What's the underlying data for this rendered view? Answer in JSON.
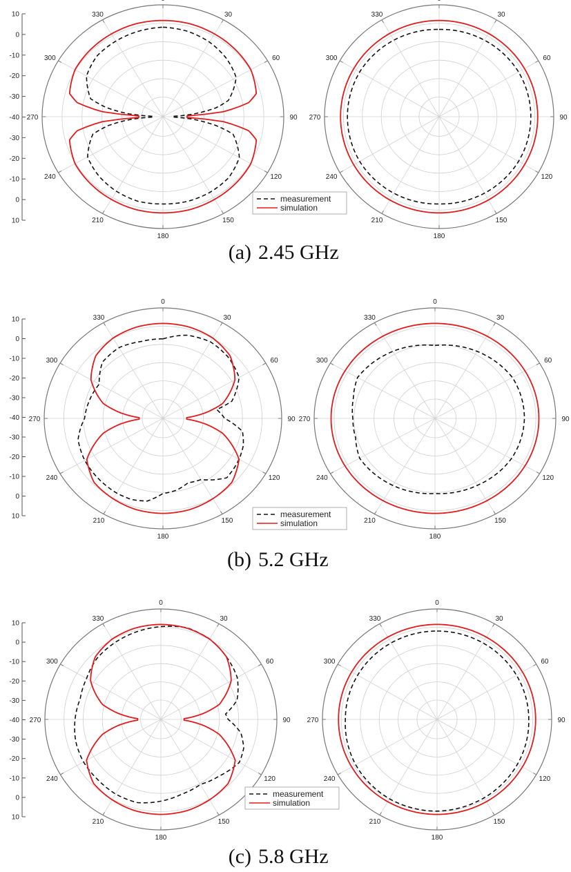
{
  "chart_data": [
    {
      "type": "polar",
      "caption": "(a) 2.45 GHz",
      "caption_label": "(a)",
      "caption_freq": "2.45 GHz",
      "legend": [
        "measurement",
        "simulation"
      ],
      "angle_ticks": [
        "0",
        "30",
        "60",
        "90",
        "120",
        "150",
        "180",
        "210",
        "240",
        "270",
        "300",
        "330"
      ],
      "radial_ticks": [
        "10",
        "0",
        "-10",
        "-20",
        "-30",
        "-40",
        "-30",
        "-20",
        "-10",
        "0",
        "10"
      ],
      "rlim": [
        -40,
        10
      ],
      "panels": [
        {
          "name": "left",
          "series": [
            {
              "name": "measurement",
              "style": "dashed",
              "color": "#111111",
              "angles": [
                0,
                15,
                30,
                45,
                60,
                75,
                80,
                85,
                88,
                92,
                95,
                100,
                105,
                120,
                135,
                150,
                165,
                180,
                195,
                210,
                225,
                240,
                255,
                260,
                265,
                268,
                272,
                275,
                280,
                285,
                300,
                315,
                330,
                345
              ],
              "values": [
                0,
                -0.5,
                -1.5,
                -3,
                -5,
                -12,
                -18,
                -28,
                -36,
                -36,
                -28,
                -18,
                -10,
                -3.5,
                -1.5,
                -1,
                -0.8,
                -1,
                -0.8,
                -1.5,
                -2.5,
                -4,
                -10,
                -17,
                -27,
                -36,
                -36,
                -26,
                -16,
                -9,
                -3.5,
                -1.5,
                -1,
                -0.5
              ]
            },
            {
              "name": "simulation",
              "style": "solid",
              "color": "#e31a1c",
              "angles": [
                0,
                15,
                30,
                45,
                60,
                75,
                80,
                85,
                88,
                92,
                95,
                100,
                105,
                120,
                135,
                150,
                165,
                180,
                195,
                210,
                225,
                240,
                255,
                260,
                265,
                268,
                272,
                275,
                280,
                285,
                300,
                315,
                330,
                345
              ],
              "values": [
                3,
                3,
                2.7,
                2.4,
                2,
                0,
                -4,
                -15,
                -30,
                -30,
                -15,
                -4,
                0,
                2,
                2.4,
                2.7,
                3,
                3,
                3,
                2.7,
                2.4,
                2,
                0,
                -4,
                -15,
                -30,
                -30,
                -15,
                -4,
                0,
                2,
                2.4,
                2.7,
                3
              ]
            }
          ]
        },
        {
          "name": "right",
          "series": [
            {
              "name": "measurement",
              "style": "dashed",
              "color": "#111111",
              "angles": [
                0,
                30,
                60,
                90,
                120,
                150,
                180,
                210,
                240,
                270,
                300,
                330
              ],
              "values": [
                -1,
                -0.5,
                0,
                0,
                0,
                -0.5,
                -1,
                -0.5,
                0,
                0,
                0,
                -0.5
              ]
            },
            {
              "name": "simulation",
              "style": "solid",
              "color": "#e31a1c",
              "angles": [
                0,
                30,
                60,
                90,
                120,
                150,
                180,
                210,
                240,
                270,
                300,
                330
              ],
              "values": [
                3,
                3,
                3,
                3,
                3,
                3,
                3,
                3,
                3,
                3,
                3,
                3
              ]
            }
          ]
        }
      ]
    },
    {
      "type": "polar",
      "caption": "(b) 5.2 GHz",
      "caption_label": "(b)",
      "caption_freq": "5.2 GHz",
      "legend": [
        "measurement",
        "simulation"
      ],
      "angle_ticks": [
        "0",
        "30",
        "60",
        "90",
        "120",
        "150",
        "180",
        "210",
        "240",
        "270",
        "300",
        "330"
      ],
      "radial_ticks": [
        "10",
        "0",
        "-10",
        "-20",
        "-30",
        "-40",
        "-30",
        "-20",
        "-10",
        "0",
        "10"
      ],
      "rlim": [
        -40,
        10
      ],
      "panels": [
        {
          "name": "left",
          "series": [
            {
              "name": "measurement",
              "style": "dashed",
              "color": "#111111",
              "angles": [
                0,
                15,
                30,
                45,
                60,
                75,
                80,
                90,
                100,
                110,
                120,
                135,
                150,
                160,
                170,
                180,
                190,
                200,
                210,
                225,
                240,
                255,
                270,
                285,
                300,
                315,
                330,
                345
              ],
              "values": [
                -4,
                -1,
                0,
                -1,
                -3,
                -10,
                -17,
                -14,
                -6,
                -4,
                -3,
                -2,
                -8,
                -9,
                -7,
                -6,
                -2,
                -1,
                -1,
                -1.5,
                -2,
                -3,
                -7,
                -8,
                -9,
                -4,
                -3,
                -4
              ]
            },
            {
              "name": "simulation",
              "style": "solid",
              "color": "#e31a1c",
              "angles": [
                0,
                15,
                30,
                45,
                60,
                75,
                82,
                88,
                92,
                98,
                105,
                120,
                135,
                150,
                165,
                180,
                195,
                210,
                225,
                240,
                255,
                262,
                268,
                272,
                278,
                285,
                300,
                315,
                330,
                345
              ],
              "values": [
                3,
                2.8,
                2,
                0,
                -5,
                -14,
                -22,
                -30,
                -30,
                -22,
                -14,
                -3,
                1,
                2,
                2.8,
                3,
                2.8,
                2,
                1,
                -3,
                -14,
                -22,
                -30,
                -30,
                -22,
                -14,
                -5,
                0,
                2,
                2.8
              ]
            }
          ]
        },
        {
          "name": "right",
          "series": [
            {
              "name": "measurement",
              "style": "dashed",
              "color": "#111111",
              "angles": [
                0,
                30,
                60,
                90,
                120,
                150,
                180,
                210,
                240,
                255,
                270,
                285,
                300,
                330
              ],
              "values": [
                -7,
                -5,
                -3,
                -3,
                -3.5,
                -5,
                -6,
                -5,
                -4,
                -6,
                -6,
                -5,
                -3,
                -5
              ]
            },
            {
              "name": "simulation",
              "style": "solid",
              "color": "#e31a1c",
              "angles": [
                0,
                30,
                60,
                90,
                120,
                150,
                180,
                210,
                240,
                270,
                300,
                330
              ],
              "values": [
                3,
                3,
                3,
                3,
                3,
                3,
                3,
                3,
                3,
                3,
                3,
                3
              ]
            }
          ]
        }
      ]
    },
    {
      "type": "polar",
      "caption": "(c) 5.8 GHz",
      "caption_label": "(c)",
      "caption_freq": "5.8 GHz",
      "legend": [
        "measurement",
        "simulation"
      ],
      "angle_ticks": [
        "0",
        "30",
        "60",
        "90",
        "120",
        "150",
        "180",
        "210",
        "240",
        "270",
        "300",
        "330"
      ],
      "radial_ticks": [
        "10",
        "0",
        "-10",
        "-20",
        "-30",
        "-40",
        "-30",
        "-20",
        "-10",
        "0",
        "10"
      ],
      "rlim": [
        -40,
        10
      ],
      "panels": [
        {
          "name": "left",
          "series": [
            {
              "name": "measurement",
              "style": "dashed",
              "color": "#111111",
              "angles": [
                0,
                15,
                30,
                45,
                60,
                75,
                85,
                90,
                100,
                110,
                120,
                135,
                150,
                165,
                180,
                195,
                210,
                225,
                240,
                255,
                270,
                285,
                300,
                315,
                330,
                345
              ],
              "values": [
                2,
                3,
                2,
                0,
                -2,
                -6,
                -12,
                -11,
                -5,
                -2,
                -1,
                -4,
                -6,
                -5,
                -3,
                -1,
                -1,
                -1.5,
                -1.5,
                -2,
                -3,
                -4,
                -3,
                -1,
                0,
                1
              ]
            },
            {
              "name": "simulation",
              "style": "solid",
              "color": "#e31a1c",
              "angles": [
                0,
                15,
                30,
                45,
                60,
                75,
                82,
                88,
                92,
                98,
                105,
                120,
                135,
                150,
                165,
                180,
                195,
                210,
                225,
                240,
                255,
                262,
                268,
                272,
                278,
                285,
                300,
                315,
                330,
                345
              ],
              "values": [
                3,
                2.8,
                2,
                0,
                -5,
                -14,
                -22,
                -30,
                -30,
                -22,
                -14,
                -3,
                1,
                2,
                2.8,
                3,
                2.8,
                2,
                1,
                -3,
                -14,
                -22,
                -30,
                -30,
                -22,
                -14,
                -5,
                0,
                2,
                2.8
              ]
            }
          ]
        },
        {
          "name": "right",
          "series": [
            {
              "name": "measurement",
              "style": "dashed",
              "color": "#111111",
              "angles": [
                0,
                30,
                60,
                90,
                120,
                150,
                180,
                210,
                240,
                270,
                300,
                330
              ],
              "values": [
                0,
                0,
                0,
                0,
                0.5,
                1,
                1.5,
                1.5,
                1,
                0,
                0,
                0
              ]
            },
            {
              "name": "simulation",
              "style": "solid",
              "color": "#e31a1c",
              "angles": [
                0,
                30,
                60,
                90,
                120,
                150,
                180,
                210,
                240,
                270,
                300,
                330
              ],
              "values": [
                3,
                3,
                3,
                3,
                3,
                3,
                3,
                3,
                3,
                3,
                3,
                3
              ]
            }
          ]
        }
      ]
    }
  ]
}
